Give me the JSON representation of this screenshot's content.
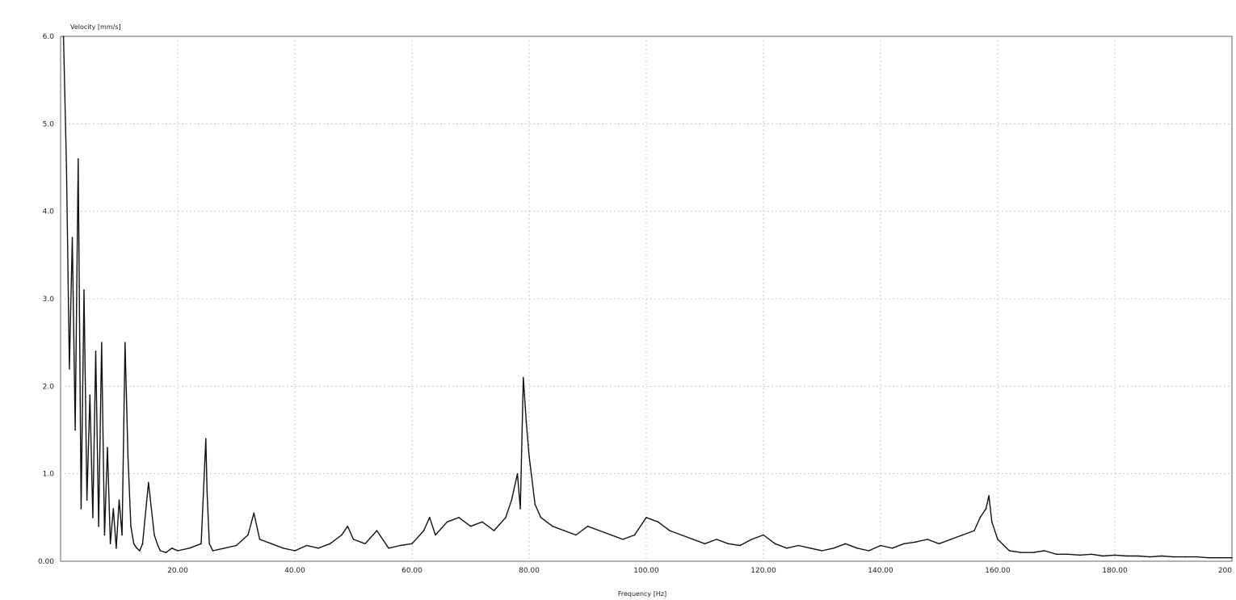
{
  "chart_data": {
    "type": "line",
    "xlabel": "Frequency [Hz]",
    "ylabel": "Velocity [mm/s]",
    "xlim": [
      0,
      200
    ],
    "ylim": [
      0,
      6
    ],
    "x_ticks": [
      20,
      40,
      60,
      80,
      100,
      120,
      140,
      160,
      180,
      200
    ],
    "x_tick_labels": [
      "20.00",
      "40.00",
      "60.00",
      "80.00",
      "100.00",
      "120.00",
      "140.00",
      "160.00",
      "180.00",
      "200"
    ],
    "y_ticks": [
      0,
      1,
      2,
      3,
      4,
      5,
      6
    ],
    "y_tick_labels": [
      "0.00",
      "1.0",
      "2.0",
      "3.0",
      "4.0",
      "5.0",
      "6.0"
    ],
    "grid": true,
    "line_color": "#111111",
    "series": [
      {
        "x": [
          0.5,
          1.0,
          1.5,
          2.0,
          2.5,
          3.0,
          3.5,
          4.0,
          4.5,
          5.0,
          5.5,
          6.0,
          6.5,
          7.0,
          7.5,
          8.0,
          8.5,
          9.0,
          9.5,
          10.0,
          10.5,
          11.0,
          11.5,
          12.0,
          12.5,
          13.0,
          13.5,
          14.0,
          15.0,
          16.0,
          16.5,
          17.0,
          18.0,
          19.0,
          20.0,
          22.0,
          24.0,
          24.8,
          25.0,
          25.4,
          26.0,
          28.0,
          30.0,
          32.0,
          33.0,
          34.0,
          36.0,
          38.0,
          40.0,
          42.0,
          44.0,
          46.0,
          48.0,
          49.0,
          50.0,
          52.0,
          54.0,
          56.0,
          58.0,
          60.0,
          62.0,
          63.0,
          64.0,
          66.0,
          68.0,
          70.0,
          72.0,
          74.0,
          76.0,
          77.0,
          78.0,
          78.5,
          79.0,
          79.5,
          80.0,
          81.0,
          82.0,
          84.0,
          86.0,
          88.0,
          90.0,
          92.0,
          94.0,
          96.0,
          98.0,
          100.0,
          102.0,
          104.0,
          106.0,
          108.0,
          110.0,
          112.0,
          114.0,
          116.0,
          118.0,
          120.0,
          122.0,
          124.0,
          126.0,
          128.0,
          130.0,
          132.0,
          134.0,
          136.0,
          138.0,
          140.0,
          142.0,
          144.0,
          146.0,
          148.0,
          150.0,
          152.0,
          154.0,
          156.0,
          157.0,
          158.0,
          158.5,
          159.0,
          160.0,
          162.0,
          164.0,
          166.0,
          168.0,
          170.0,
          172.0,
          174.0,
          176.0,
          178.0,
          180.0,
          182.0,
          184.0,
          186.0,
          188.0,
          190.0,
          192.0,
          194.0,
          196.0,
          198.0,
          200.0
        ],
        "y": [
          6.0,
          4.5,
          2.2,
          3.7,
          1.5,
          4.6,
          0.6,
          3.1,
          0.7,
          1.9,
          0.5,
          2.4,
          0.4,
          2.5,
          0.3,
          1.3,
          0.2,
          0.6,
          0.15,
          0.7,
          0.3,
          2.5,
          1.2,
          0.4,
          0.2,
          0.15,
          0.12,
          0.2,
          0.9,
          0.3,
          0.2,
          0.12,
          0.1,
          0.15,
          0.12,
          0.15,
          0.2,
          1.4,
          0.8,
          0.2,
          0.12,
          0.15,
          0.18,
          0.3,
          0.55,
          0.25,
          0.2,
          0.15,
          0.12,
          0.18,
          0.15,
          0.2,
          0.3,
          0.4,
          0.25,
          0.2,
          0.35,
          0.15,
          0.18,
          0.2,
          0.35,
          0.5,
          0.3,
          0.45,
          0.5,
          0.4,
          0.45,
          0.35,
          0.5,
          0.7,
          1.0,
          0.6,
          2.1,
          1.6,
          1.2,
          0.65,
          0.5,
          0.4,
          0.35,
          0.3,
          0.4,
          0.35,
          0.3,
          0.25,
          0.3,
          0.5,
          0.45,
          0.35,
          0.3,
          0.25,
          0.2,
          0.25,
          0.2,
          0.18,
          0.25,
          0.3,
          0.2,
          0.15,
          0.18,
          0.15,
          0.12,
          0.15,
          0.2,
          0.15,
          0.12,
          0.18,
          0.15,
          0.2,
          0.22,
          0.25,
          0.2,
          0.25,
          0.3,
          0.35,
          0.5,
          0.6,
          0.75,
          0.45,
          0.25,
          0.12,
          0.1,
          0.1,
          0.12,
          0.08,
          0.08,
          0.07,
          0.08,
          0.06,
          0.07,
          0.06,
          0.06,
          0.05,
          0.06,
          0.05,
          0.05,
          0.05,
          0.04,
          0.04,
          0.04
        ]
      }
    ]
  }
}
